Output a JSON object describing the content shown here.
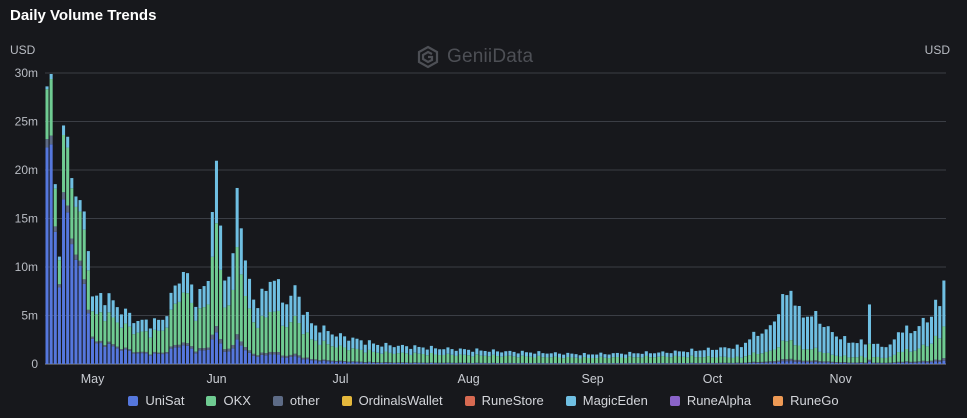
{
  "header": {
    "title": "Daily Volume Trends",
    "unit_left": "USD",
    "unit_right": "USD",
    "watermark": "GeniiData"
  },
  "colors": {
    "UniSat": "#5577dd",
    "OKX": "#6fcb92",
    "other": "#5d6b86",
    "OrdinalsWallet": "#e5b83c",
    "RuneStore": "#d76a52",
    "MagicEden": "#6fbfe2",
    "RuneAlpha": "#8a63c9",
    "RuneGo": "#ee9a55"
  },
  "chart_data": {
    "type": "bar",
    "stacked": true,
    "ylabel": "USD",
    "ylim": [
      0,
      30
    ],
    "y_ticks": [
      "0",
      "5m",
      "10m",
      "15m",
      "20m",
      "25m",
      "30m"
    ],
    "x_ticks": [
      "May",
      "Jun",
      "Jul",
      "Aug",
      "Sep",
      "Oct",
      "Nov"
    ],
    "legend_position": "bottom",
    "grid": true,
    "series_names": [
      "UniSat",
      "OKX",
      "other",
      "OrdinalsWallet",
      "RuneStore",
      "MagicEden",
      "RuneAlpha",
      "RuneGo"
    ],
    "total_anchors": [
      [
        0,
        27
      ],
      [
        1,
        29
      ],
      [
        2,
        18
      ],
      [
        3,
        12.7
      ],
      [
        4,
        22.8
      ],
      [
        5,
        22.3
      ],
      [
        6,
        20.3
      ],
      [
        8,
        16
      ],
      [
        10,
        13.4
      ],
      [
        11,
        6.7
      ],
      [
        14,
        7.1
      ],
      [
        18,
        5.6
      ],
      [
        22,
        4.4
      ],
      [
        25,
        4.3
      ],
      [
        28,
        4.5
      ],
      [
        32,
        8.9
      ],
      [
        33,
        9.8
      ],
      [
        36,
        6.8
      ],
      [
        39,
        8.3
      ],
      [
        40,
        18.2
      ],
      [
        41,
        19
      ],
      [
        43,
        8.9
      ],
      [
        45,
        10.5
      ],
      [
        46,
        17.5
      ],
      [
        47,
        15.7
      ],
      [
        48,
        10.4
      ],
      [
        50,
        6.4
      ],
      [
        53,
        7.4
      ],
      [
        55,
        9.6
      ],
      [
        57,
        6.2
      ],
      [
        60,
        7.6
      ],
      [
        64,
        4.1
      ],
      [
        70,
        3
      ],
      [
        80,
        2
      ],
      [
        95,
        1.6
      ],
      [
        110,
        1.3
      ],
      [
        130,
        1
      ],
      [
        150,
        1.2
      ],
      [
        160,
        1.5
      ],
      [
        168,
        1.8
      ],
      [
        170,
        2.7
      ],
      [
        172,
        3.1
      ],
      [
        175,
        3.7
      ],
      [
        178,
        6.5
      ],
      [
        180,
        7.8
      ],
      [
        182,
        5.2
      ],
      [
        186,
        4.9
      ],
      [
        190,
        3.2
      ],
      [
        194,
        2.3
      ],
      [
        198,
        2.2
      ],
      [
        199,
        6.4
      ],
      [
        200,
        2
      ],
      [
        204,
        1.8
      ],
      [
        206,
        3.4
      ],
      [
        210,
        3.5
      ],
      [
        214,
        5.1
      ],
      [
        215,
        6.1
      ],
      [
        216,
        5.9
      ],
      [
        217,
        9.1
      ]
    ],
    "okx_share_anchors": [
      [
        0,
        0.18
      ],
      [
        8,
        0.3
      ],
      [
        12,
        0.4
      ],
      [
        22,
        0.45
      ],
      [
        34,
        0.55
      ],
      [
        42,
        0.5
      ],
      [
        60,
        0.48
      ],
      [
        80,
        0.5
      ],
      [
        110,
        0.55
      ],
      [
        150,
        0.55
      ],
      [
        168,
        0.3
      ],
      [
        190,
        0.22
      ],
      [
        205,
        0.3
      ],
      [
        217,
        0.38
      ]
    ],
    "unisat_share_anchors": [
      [
        0,
        0.78
      ],
      [
        8,
        0.6
      ],
      [
        12,
        0.3
      ],
      [
        22,
        0.25
      ],
      [
        34,
        0.2
      ],
      [
        42,
        0.15
      ],
      [
        60,
        0.1
      ],
      [
        80,
        0.06
      ],
      [
        110,
        0.05
      ],
      [
        150,
        0.05
      ],
      [
        168,
        0.04
      ],
      [
        217,
        0.04
      ]
    ]
  },
  "legend": [
    {
      "name": "UniSat",
      "color": "#5577dd"
    },
    {
      "name": "OKX",
      "color": "#6fcb92"
    },
    {
      "name": "other",
      "color": "#5d6b86"
    },
    {
      "name": "OrdinalsWallet",
      "color": "#e5b83c"
    },
    {
      "name": "RuneStore",
      "color": "#d76a52"
    },
    {
      "name": "MagicEden",
      "color": "#6fbfe2"
    },
    {
      "name": "RuneAlpha",
      "color": "#8a63c9"
    },
    {
      "name": "RuneGo",
      "color": "#ee9a55"
    }
  ]
}
